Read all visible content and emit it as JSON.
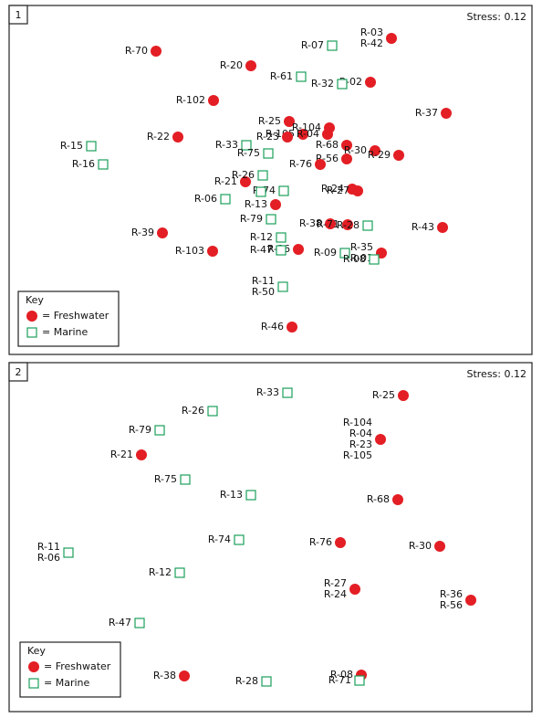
{
  "chart_data": [
    {
      "type": "scatter",
      "panel": "1",
      "stress": "Stress: 0.12",
      "legend_title": "Key",
      "xlim": [
        0,
        573
      ],
      "ylim": [
        0,
        382
      ],
      "series": [
        {
          "name": "= Freshwater",
          "color": "#e31e24",
          "marker": "circle",
          "x": [
            161,
            265,
            419,
            396,
            224,
            479,
            185,
            307,
            322,
            351,
            305,
            349,
            370,
            401,
            427,
            370,
            341,
            259,
            376,
            382,
            292,
            475,
            168,
            352,
            371,
            317,
            223,
            408,
            310
          ],
          "y": [
            332,
            316,
            346,
            298,
            278,
            264,
            238,
            255,
            241,
            248,
            238,
            241,
            229,
            223,
            218,
            214,
            208,
            189,
            181,
            179,
            164,
            139,
            133,
            143,
            142,
            115,
            113,
            111,
            30
          ],
          "labels": [
            [
              "R-70"
            ],
            [
              "R-20"
            ],
            [
              "R-03",
              "R-42"
            ],
            [
              "R-02"
            ],
            [
              "R-102"
            ],
            [
              "R-37"
            ],
            [
              "R-22"
            ],
            [
              "R-25"
            ],
            [
              "R-105"
            ],
            [
              "R-104"
            ],
            [
              "R-23"
            ],
            [
              "R-04"
            ],
            [
              "R-68"
            ],
            [
              "R-30"
            ],
            [
              "R-29"
            ],
            [
              "R-56"
            ],
            [
              "R-76"
            ],
            [
              "R-21"
            ],
            [
              "R-24"
            ],
            [
              "R-27"
            ],
            [
              "R-13"
            ],
            [
              "R-43"
            ],
            [
              "R-39"
            ],
            [
              "R-38"
            ],
            [
              "R-71"
            ],
            [
              "R-36"
            ],
            [
              "R-103"
            ],
            [
              "R-35",
              "R-01"
            ],
            [
              "R-46"
            ]
          ]
        },
        {
          "name": "= Marine",
          "color": "#1a9f5a",
          "marker": "square",
          "x": [
            354,
            320,
            365,
            90,
            103,
            260,
            284,
            278,
            301,
            276,
            237,
            287,
            393,
            298,
            298,
            368,
            400,
            300
          ],
          "y": [
            338,
            304,
            296,
            228,
            208,
            229,
            220,
            196,
            179,
            178,
            170,
            148,
            141,
            128,
            114,
            111,
            104,
            74
          ],
          "labels": [
            [
              "R-07"
            ],
            [
              "R-61"
            ],
            [
              "R-32"
            ],
            [
              "R-15"
            ],
            [
              "R-16"
            ],
            [
              "R-33"
            ],
            [
              "R-75"
            ],
            [
              "R-26"
            ],
            [
              "R-74"
            ],
            [],
            [
              "R-06"
            ],
            [
              "R-79"
            ],
            [
              "R-28"
            ],
            [
              "R-12"
            ],
            [
              "R-47"
            ],
            [
              "R-09"
            ],
            [
              "R-08"
            ],
            [
              "R-11",
              "R-50"
            ]
          ]
        }
      ]
    },
    {
      "type": "scatter",
      "panel": "2",
      "stress": "Stress: 0.12",
      "legend_title": "Key",
      "xlim": [
        0,
        573
      ],
      "ylim": [
        0,
        382
      ],
      "series": [
        {
          "name": "= Freshwater",
          "color": "#e31e24",
          "marker": "circle",
          "x": [
            432,
            407,
            145,
            426,
            363,
            472,
            379,
            506,
            192,
            386
          ],
          "y": [
            346,
            298,
            281,
            232,
            185,
            181,
            134,
            122,
            39,
            40
          ],
          "labels": [
            [
              "R-25"
            ],
            [
              "R-104",
              "R-04",
              "R-23",
              "R-105"
            ],
            [
              "R-21"
            ],
            [
              "R-68"
            ],
            [
              "R-76"
            ],
            [
              "R-30"
            ],
            [
              "R-27",
              "R-24"
            ],
            [
              "R-36",
              "R-56"
            ],
            [
              "R-38"
            ],
            [
              "R-08"
            ]
          ]
        },
        {
          "name": "= Marine",
          "color": "#1a9f5a",
          "marker": "square",
          "x": [
            305,
            223,
            165,
            193,
            265,
            65,
            252,
            187,
            143,
            282,
            384
          ],
          "y": [
            349,
            329,
            308,
            254,
            237,
            174,
            188,
            152,
            97,
            33,
            34
          ],
          "labels": [
            [
              "R-33"
            ],
            [
              "R-26"
            ],
            [
              "R-79"
            ],
            [
              "R-75"
            ],
            [
              "R-13"
            ],
            [
              "R-11",
              "R-06"
            ],
            [
              "R-74"
            ],
            [
              "R-12"
            ],
            [
              "R-47"
            ],
            [
              "R-28"
            ],
            [
              "R-71"
            ]
          ]
        }
      ]
    }
  ]
}
